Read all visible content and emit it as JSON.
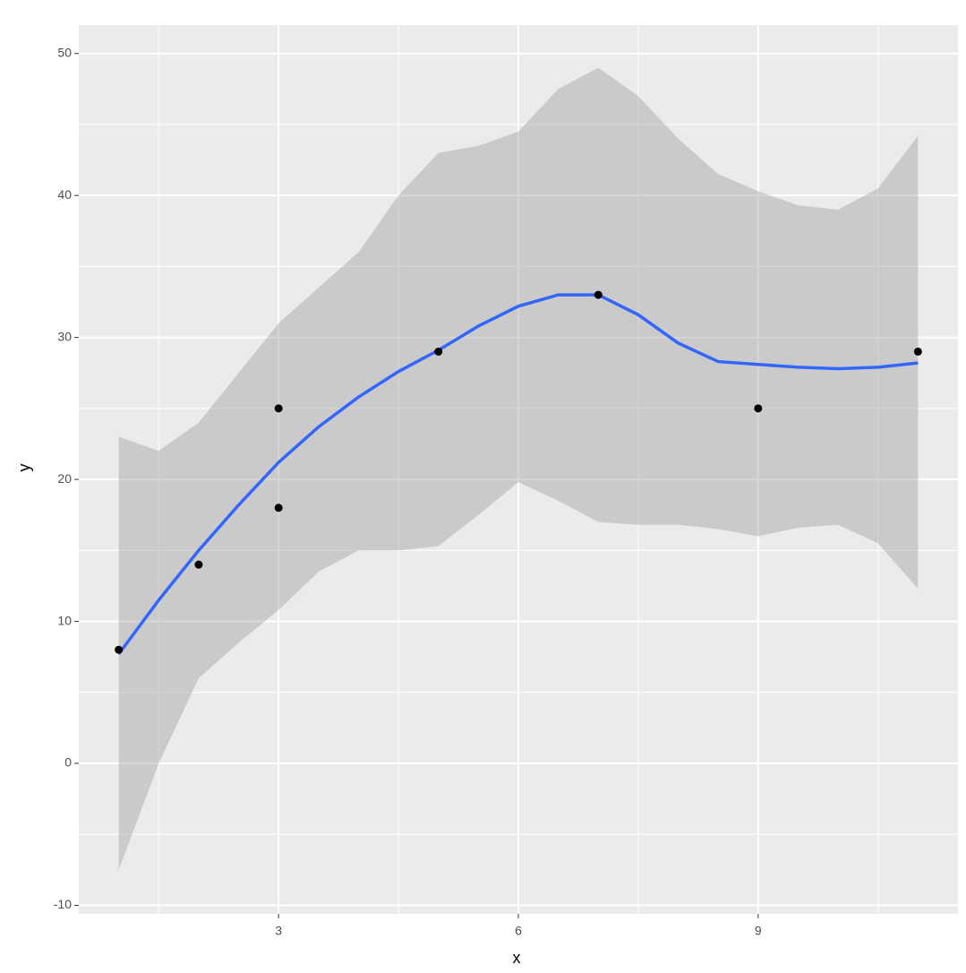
{
  "chart_data": {
    "type": "scatter",
    "x_label": "x",
    "y_label": "y",
    "x": [
      1,
      2,
      3,
      3,
      5,
      7,
      9,
      11
    ],
    "values": [
      8,
      14,
      25,
      18,
      29,
      33,
      25,
      29
    ],
    "color": "#000000",
    "smooth": {
      "x": [
        1,
        1.5,
        2,
        2.5,
        3,
        3.5,
        4,
        4.5,
        5,
        5.5,
        6,
        6.5,
        7,
        7.5,
        8,
        8.5,
        9,
        9.5,
        10,
        10.5,
        11
      ],
      "values": [
        7.7,
        11.5,
        15,
        18.2,
        21.2,
        23.7,
        25.8,
        27.6,
        29.1,
        30.8,
        32.2,
        33.0,
        33.0,
        31.6,
        29.6,
        28.3,
        28.1,
        27.9,
        27.8,
        27.9,
        28.2
      ],
      "upper": [
        23,
        22,
        24,
        27.5,
        31,
        33.5,
        36,
        40,
        43,
        43.5,
        44.5,
        47.5,
        49,
        47,
        44,
        41.5,
        40.3,
        39.3,
        39,
        40.5,
        44.2
      ],
      "lower": [
        -7.5,
        0,
        6,
        8.5,
        10.8,
        13.5,
        15,
        15,
        15.3,
        17.5,
        19.8,
        18.5,
        17,
        16.8,
        16.8,
        16.5,
        16,
        16.6,
        16.8,
        15.5,
        12.3
      ],
      "color": "#3366FF",
      "band_color": "#999999"
    },
    "xlim": [
      0.5,
      11.5
    ],
    "ylim": [
      -10.6,
      52
    ],
    "xticks": [
      3,
      6,
      9
    ],
    "yticks": [
      -10,
      0,
      10,
      20,
      30,
      40,
      50
    ],
    "x_minor_grid": [
      1.5,
      4.5,
      7.5,
      10.5
    ],
    "y_minor_grid": [
      -5,
      5,
      15,
      25,
      35,
      45
    ],
    "grid": true
  }
}
